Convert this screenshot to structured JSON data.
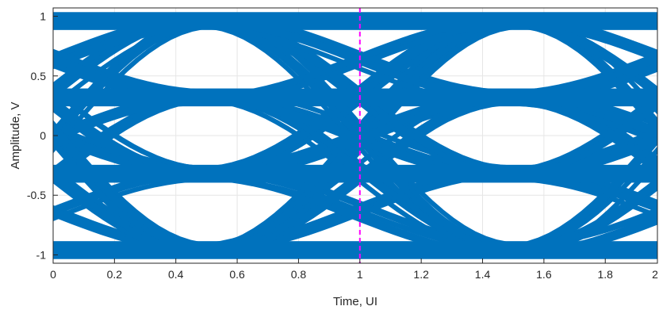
{
  "chart_data": {
    "type": "line",
    "title": "",
    "xlabel": "Time, UI",
    "ylabel": "Amplitude, V",
    "xlim": [
      0,
      1.97
    ],
    "ylim": [
      -1.07,
      1.07
    ],
    "xticks": [
      0,
      0.2,
      0.4,
      0.6,
      0.8,
      1,
      1.2,
      1.4,
      1.6,
      1.8,
      2
    ],
    "xtick_labels": [
      "0",
      "0.2",
      "0.4",
      "0.6",
      "0.8",
      "1",
      "1.2",
      "1.4",
      "1.6",
      "1.8",
      "2"
    ],
    "yticks": [
      1,
      0.5,
      0,
      -0.5,
      -1
    ],
    "ytick_labels": [
      "1",
      "0.5",
      "0",
      "-0.5",
      "-1"
    ],
    "grid": true,
    "legend": "none",
    "levels": [
      -0.96,
      -0.32,
      0.32,
      0.96
    ],
    "outer_swing": [
      0.86,
      1.03
    ],
    "inner_swing": [
      0.22,
      0.41
    ],
    "transition_centers": [
      0.5,
      1.5
    ],
    "series_color": "#0072BD",
    "marker_line": {
      "x": 1,
      "color": "#FF00FF",
      "style": "dashed"
    }
  }
}
